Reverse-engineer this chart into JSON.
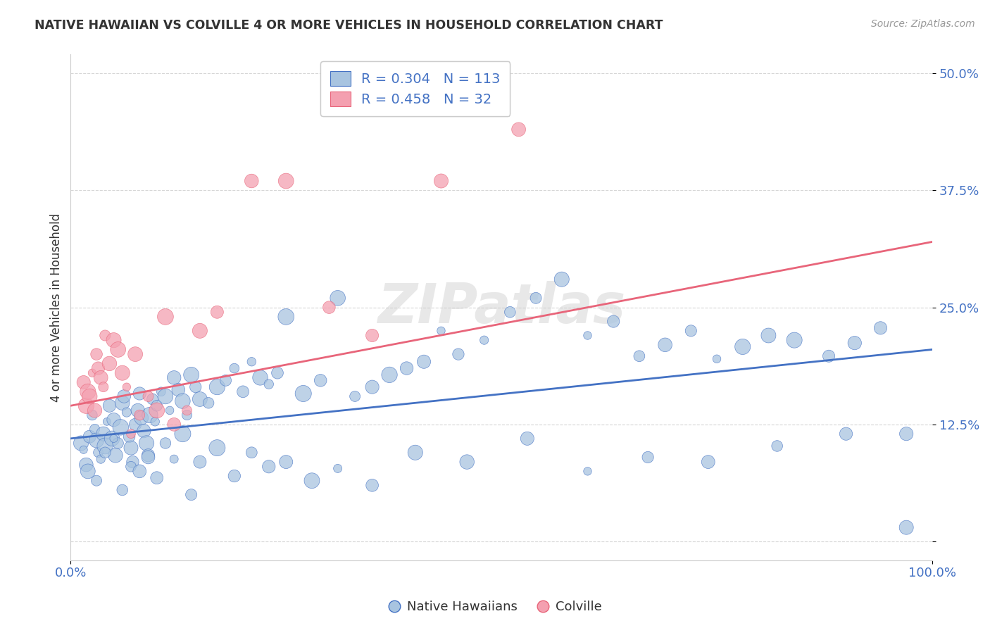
{
  "title": "NATIVE HAWAIIAN VS COLVILLE 4 OR MORE VEHICLES IN HOUSEHOLD CORRELATION CHART",
  "source": "Source: ZipAtlas.com",
  "ylabel": "4 or more Vehicles in Household",
  "xlim": [
    0.0,
    100.0
  ],
  "ylim": [
    -2.0,
    52.0
  ],
  "yticks": [
    0,
    12.5,
    25.0,
    37.5,
    50.0
  ],
  "ytick_labels": [
    "",
    "12.5%",
    "25.0%",
    "37.5%",
    "50.0%"
  ],
  "xtick_labels": [
    "0.0%",
    "100.0%"
  ],
  "watermark": "ZIPatlas",
  "blue_color": "#a8c4e0",
  "pink_color": "#f4a0b0",
  "line_blue": "#4472c4",
  "line_pink": "#e8657a",
  "text_blue": "#4472c4",
  "native_hawaiians_x": [
    1.2,
    1.5,
    1.8,
    2.0,
    2.2,
    2.5,
    2.8,
    3.0,
    3.2,
    3.5,
    3.8,
    4.0,
    4.2,
    4.5,
    4.8,
    5.0,
    5.2,
    5.5,
    5.8,
    6.0,
    6.2,
    6.5,
    6.8,
    7.0,
    7.2,
    7.5,
    7.8,
    8.0,
    8.2,
    8.5,
    8.8,
    9.0,
    9.2,
    9.5,
    9.8,
    10.0,
    10.5,
    11.0,
    11.5,
    12.0,
    12.5,
    13.0,
    13.5,
    14.0,
    14.5,
    15.0,
    16.0,
    17.0,
    18.0,
    19.0,
    20.0,
    21.0,
    22.0,
    23.0,
    24.0,
    25.0,
    27.0,
    29.0,
    31.0,
    33.0,
    35.0,
    37.0,
    39.0,
    41.0,
    43.0,
    45.0,
    48.0,
    51.0,
    54.0,
    57.0,
    60.0,
    63.0,
    66.0,
    69.0,
    72.0,
    75.0,
    78.0,
    81.0,
    84.0,
    88.0,
    91.0,
    94.0,
    97.0,
    3.0,
    4.0,
    5.0,
    6.0,
    7.0,
    8.0,
    9.0,
    10.0,
    11.0,
    12.0,
    13.0,
    14.0,
    15.0,
    17.0,
    19.0,
    21.0,
    23.0,
    25.0,
    28.0,
    31.0,
    35.0,
    40.0,
    46.0,
    53.0,
    60.0,
    67.0,
    74.0,
    82.0,
    90.0,
    97.0
  ],
  "native_hawaiians_y": [
    10.5,
    9.8,
    8.2,
    7.5,
    11.2,
    13.5,
    12.0,
    10.8,
    9.5,
    8.8,
    11.5,
    10.2,
    12.8,
    14.5,
    11.0,
    13.0,
    9.2,
    10.5,
    12.2,
    14.8,
    15.5,
    13.8,
    11.2,
    10.0,
    8.5,
    12.5,
    14.0,
    15.8,
    13.2,
    11.8,
    10.5,
    9.2,
    13.5,
    15.2,
    12.8,
    14.5,
    16.0,
    15.5,
    14.0,
    17.5,
    16.2,
    15.0,
    13.5,
    17.8,
    16.5,
    15.2,
    14.8,
    16.5,
    17.2,
    18.5,
    16.0,
    19.2,
    17.5,
    16.8,
    18.0,
    24.0,
    15.8,
    17.2,
    26.0,
    15.5,
    16.5,
    17.8,
    18.5,
    19.2,
    22.5,
    20.0,
    21.5,
    24.5,
    26.0,
    28.0,
    22.0,
    23.5,
    19.8,
    21.0,
    22.5,
    19.5,
    20.8,
    22.0,
    21.5,
    19.8,
    21.2,
    22.8,
    11.5,
    6.5,
    9.5,
    11.0,
    5.5,
    8.0,
    7.5,
    9.0,
    6.8,
    10.5,
    8.8,
    11.5,
    5.0,
    8.5,
    10.0,
    7.0,
    9.5,
    8.0,
    8.5,
    6.5,
    7.8,
    6.0,
    9.5,
    8.5,
    11.0,
    7.5,
    9.0,
    8.5,
    10.2,
    11.5,
    1.5
  ],
  "colville_x": [
    1.5,
    1.8,
    2.0,
    2.2,
    2.5,
    2.8,
    3.0,
    3.2,
    3.5,
    3.8,
    4.0,
    4.5,
    5.0,
    5.5,
    6.0,
    6.5,
    7.0,
    7.5,
    8.0,
    9.0,
    10.0,
    11.0,
    12.0,
    13.5,
    15.0,
    17.0,
    21.0,
    25.0,
    30.0,
    35.0,
    43.0,
    52.0
  ],
  "colville_y": [
    17.0,
    14.5,
    16.0,
    15.5,
    18.0,
    14.0,
    20.0,
    18.5,
    17.5,
    16.5,
    22.0,
    19.0,
    21.5,
    20.5,
    18.0,
    16.5,
    11.5,
    20.0,
    13.5,
    15.5,
    14.0,
    24.0,
    12.5,
    14.0,
    22.5,
    24.5,
    38.5,
    38.5,
    25.0,
    22.0,
    38.5,
    44.0
  ],
  "native_r": 0.304,
  "colville_r": 0.458,
  "native_n": 113,
  "colville_n": 32,
  "blue_line_x0": 0.0,
  "blue_line_y0": 11.0,
  "blue_line_x1": 100.0,
  "blue_line_y1": 20.5,
  "pink_line_x0": 0.0,
  "pink_line_y0": 14.5,
  "pink_line_x1": 100.0,
  "pink_line_y1": 32.0
}
